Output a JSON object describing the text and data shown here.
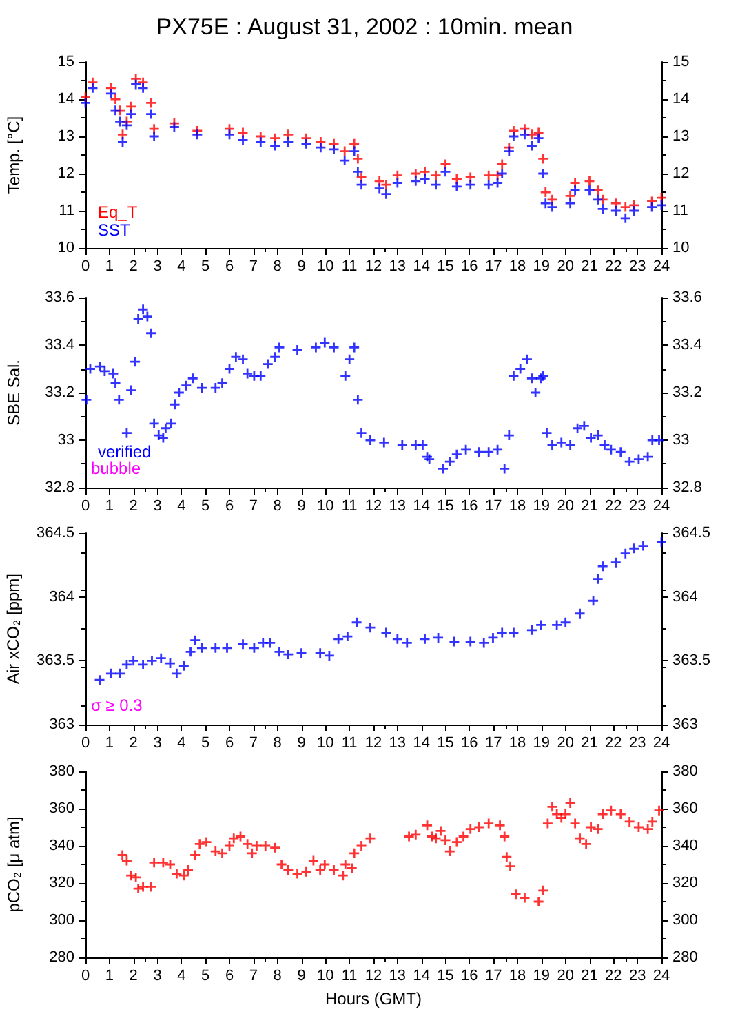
{
  "chart_data": [
    {
      "type": "scatter",
      "title": "PX75E : August 31, 2002 : 10min. mean",
      "ylabel": "Temp. [°C]",
      "xlim": [
        0,
        24
      ],
      "xticks": [
        0,
        1,
        2,
        3,
        4,
        5,
        6,
        7,
        8,
        9,
        10,
        11,
        12,
        13,
        14,
        15,
        16,
        17,
        18,
        19,
        20,
        21,
        22,
        23,
        24
      ],
      "ylim": [
        10,
        15
      ],
      "yticks": [
        10,
        11,
        12,
        13,
        14,
        15
      ],
      "y2lim": [
        10,
        15
      ],
      "y2ticks": [
        10,
        11,
        12,
        13,
        14,
        15
      ],
      "marker": "cross",
      "grid": false,
      "legend": "bottom left",
      "series": [
        {
          "name": "Eq_T",
          "color": "#ff0000",
          "x": [
            0,
            0.3,
            1.06,
            1.25,
            1.44,
            1.55,
            1.72,
            1.9,
            2.1,
            2.4,
            2.73,
            2.86,
            3.7,
            4.66,
            6.0,
            6.56,
            7.3,
            7.9,
            8.45,
            9.2,
            9.8,
            10.35,
            10.8,
            11.2,
            11.35,
            11.5,
            12.25,
            12.53,
            13.0,
            13.76,
            14.14,
            14.6,
            15.0,
            15.47,
            16.04,
            16.8,
            17.17,
            17.36,
            17.65,
            17.84,
            18.3,
            18.6,
            18.88,
            19.07,
            19.17,
            19.45,
            20.2,
            20.4,
            21.0,
            21.35,
            21.55,
            22.1,
            22.5,
            22.86,
            23.6,
            24
          ],
          "values": [
            14.05,
            14.45,
            14.3,
            14.0,
            13.7,
            13.05,
            13.4,
            13.8,
            14.55,
            14.45,
            13.9,
            13.2,
            13.35,
            13.15,
            13.2,
            13.1,
            13.0,
            12.95,
            13.05,
            12.95,
            12.85,
            12.8,
            12.6,
            12.8,
            12.4,
            11.9,
            11.8,
            11.7,
            11.95,
            12.0,
            12.05,
            11.95,
            12.25,
            11.85,
            11.9,
            11.95,
            11.95,
            12.25,
            12.7,
            13.15,
            13.2,
            13.05,
            13.1,
            12.4,
            11.5,
            11.3,
            11.4,
            11.75,
            11.8,
            11.55,
            11.3,
            11.2,
            11.1,
            11.15,
            11.25,
            11.35
          ]
        },
        {
          "name": "SST",
          "color": "#0000ff",
          "x": [
            0,
            0.3,
            1.06,
            1.25,
            1.44,
            1.55,
            1.72,
            1.9,
            2.1,
            2.4,
            2.73,
            2.86,
            3.7,
            4.66,
            6.0,
            6.56,
            7.3,
            7.9,
            8.45,
            9.2,
            9.8,
            10.35,
            10.8,
            11.2,
            11.35,
            11.5,
            12.25,
            12.53,
            13.0,
            13.76,
            14.14,
            14.6,
            15.0,
            15.47,
            16.04,
            16.8,
            17.17,
            17.36,
            17.65,
            17.84,
            18.3,
            18.6,
            18.88,
            19.07,
            19.17,
            19.45,
            20.2,
            20.4,
            21.0,
            21.35,
            21.55,
            22.1,
            22.5,
            22.86,
            23.6,
            24
          ],
          "values": [
            13.9,
            14.3,
            14.15,
            13.7,
            13.4,
            12.85,
            13.3,
            13.6,
            14.4,
            14.3,
            13.6,
            13.0,
            13.25,
            13.05,
            13.05,
            12.9,
            12.85,
            12.75,
            12.85,
            12.8,
            12.7,
            12.65,
            12.35,
            12.6,
            12.05,
            11.7,
            11.6,
            11.45,
            11.75,
            11.8,
            11.85,
            11.7,
            12.05,
            11.65,
            11.7,
            11.7,
            11.75,
            12.0,
            12.6,
            13.0,
            13.05,
            12.75,
            12.95,
            12.0,
            11.2,
            11.1,
            11.2,
            11.55,
            11.55,
            11.3,
            11.05,
            11.0,
            10.8,
            11.0,
            11.1,
            11.15
          ]
        }
      ]
    },
    {
      "type": "scatter",
      "ylabel": "SBE Sal.",
      "xlim": [
        0,
        24
      ],
      "xticks": [
        0,
        1,
        2,
        3,
        4,
        5,
        6,
        7,
        8,
        9,
        10,
        11,
        12,
        13,
        14,
        15,
        16,
        17,
        18,
        19,
        20,
        21,
        22,
        23,
        24
      ],
      "ylim": [
        32.8,
        33.6
      ],
      "yticks": [
        32.8,
        33,
        33.2,
        33.4,
        33.6
      ],
      "y2lim": [
        32.8,
        33.6
      ],
      "y2ticks": [
        32.8,
        33,
        33.2,
        33.4,
        33.6
      ],
      "marker": "cross",
      "grid": false,
      "legend": "bottom left",
      "annotations": [
        "bubble"
      ],
      "series": [
        {
          "name": "verified",
          "color": "#0000ff",
          "x": [
            0.04,
            0.2,
            0.6,
            0.8,
            1.16,
            1.25,
            1.4,
            1.72,
            1.9,
            2.07,
            2.2,
            2.4,
            2.58,
            2.73,
            2.86,
            3.05,
            3.24,
            3.34,
            3.56,
            3.72,
            3.9,
            4.2,
            4.47,
            4.85,
            5.42,
            5.7,
            6.0,
            6.27,
            6.56,
            6.75,
            7.03,
            7.3,
            7.6,
            7.9,
            8.08,
            8.83,
            9.6,
            9.97,
            10.35,
            10.83,
            11.0,
            11.2,
            11.35,
            11.5,
            11.87,
            12.44,
            13.2,
            13.76,
            14.05,
            14.24,
            14.33,
            14.9,
            15.18,
            15.47,
            15.85,
            16.4,
            16.8,
            17.17,
            17.46,
            17.65,
            17.84,
            18.12,
            18.4,
            18.6,
            18.75,
            18.97,
            19.07,
            19.22,
            19.45,
            19.83,
            20.2,
            20.5,
            20.78,
            21.06,
            21.35,
            21.63,
            21.9,
            22.3,
            22.67,
            23.05,
            23.43,
            23.62,
            23.9
          ],
          "values": [
            33.17,
            33.3,
            33.31,
            33.29,
            33.28,
            33.24,
            33.17,
            33.03,
            33.21,
            33.33,
            33.51,
            33.55,
            33.52,
            33.45,
            33.07,
            33.02,
            33.01,
            33.05,
            33.07,
            33.15,
            33.2,
            33.23,
            33.26,
            33.22,
            33.22,
            33.24,
            33.3,
            33.35,
            33.34,
            33.28,
            33.27,
            33.27,
            33.32,
            33.35,
            33.39,
            33.38,
            33.39,
            33.41,
            33.39,
            33.27,
            33.34,
            33.39,
            33.17,
            33.03,
            33.0,
            32.99,
            32.98,
            32.98,
            32.98,
            32.93,
            32.92,
            32.88,
            32.91,
            32.94,
            32.96,
            32.95,
            32.95,
            32.96,
            32.88,
            33.02,
            33.27,
            33.3,
            33.34,
            33.26,
            33.2,
            33.26,
            33.27,
            33.03,
            32.98,
            32.99,
            32.98,
            33.05,
            33.06,
            33.01,
            33.02,
            32.98,
            32.96,
            32.95,
            32.91,
            32.92,
            32.93,
            33.0,
            33.0
          ]
        }
      ]
    },
    {
      "type": "scatter",
      "ylabel": "Air xCO₂ [ppm]",
      "xlim": [
        0,
        24
      ],
      "xticks": [
        0,
        1,
        2,
        3,
        4,
        5,
        6,
        7,
        8,
        9,
        10,
        11,
        12,
        13,
        14,
        15,
        16,
        17,
        18,
        19,
        20,
        21,
        22,
        23,
        24
      ],
      "ylim": [
        363,
        364.5
      ],
      "yticks": [
        363,
        363.5,
        364,
        364.5
      ],
      "y2lim": [
        363,
        364.5
      ],
      "y2ticks": [
        363,
        363.5,
        364,
        364.5
      ],
      "marker": "cross",
      "grid": false,
      "annotations": [
        "σ ≥ 0.3"
      ],
      "series": [
        {
          "color": "#0000ff",
          "x": [
            0.59,
            1.06,
            1.44,
            1.72,
            2.0,
            2.4,
            2.77,
            3.15,
            3.53,
            3.8,
            4.1,
            4.38,
            4.57,
            4.85,
            5.42,
            5.9,
            6.56,
            7.03,
            7.4,
            7.7,
            8.08,
            8.45,
            9.0,
            9.78,
            10.16,
            10.54,
            10.92,
            11.3,
            11.87,
            12.53,
            13.0,
            13.4,
            14.14,
            14.7,
            15.37,
            16.04,
            16.6,
            16.98,
            17.36,
            17.84,
            18.6,
            18.98,
            19.64,
            20.0,
            20.6,
            21.16,
            21.35,
            21.55,
            22.1,
            22.5,
            22.86,
            23.24,
            24
          ],
          "values": [
            363.35,
            363.4,
            363.4,
            363.47,
            363.5,
            363.47,
            363.5,
            363.52,
            363.48,
            363.4,
            363.46,
            363.57,
            363.66,
            363.6,
            363.6,
            363.6,
            363.63,
            363.6,
            363.64,
            363.64,
            363.57,
            363.55,
            363.56,
            363.56,
            363.54,
            363.67,
            363.69,
            363.8,
            363.76,
            363.72,
            363.67,
            363.64,
            363.67,
            363.68,
            363.65,
            363.65,
            363.64,
            363.68,
            363.72,
            363.72,
            363.74,
            363.78,
            363.78,
            363.8,
            363.87,
            363.97,
            364.14,
            364.24,
            364.27,
            364.34,
            364.38,
            364.4,
            364.43
          ]
        }
      ]
    },
    {
      "type": "scatter",
      "ylabel": "pCO₂ [μ atm]",
      "xlabel": "Hours (GMT)",
      "xlim": [
        0,
        24
      ],
      "xticks": [
        0,
        1,
        2,
        3,
        4,
        5,
        6,
        7,
        8,
        9,
        10,
        11,
        12,
        13,
        14,
        15,
        16,
        17,
        18,
        19,
        20,
        21,
        22,
        23,
        24
      ],
      "ylim": [
        280,
        380
      ],
      "yticks": [
        280,
        300,
        320,
        340,
        360,
        380
      ],
      "y2lim": [
        280,
        380
      ],
      "y2ticks": [
        280,
        300,
        320,
        340,
        360,
        380
      ],
      "marker": "cross",
      "grid": false,
      "series": [
        {
          "color": "#ff0000",
          "x": [
            1.54,
            1.72,
            1.9,
            2.1,
            2.2,
            2.4,
            2.73,
            2.86,
            3.24,
            3.53,
            3.8,
            4.1,
            4.28,
            4.57,
            4.76,
            5.04,
            5.42,
            5.7,
            6.0,
            6.18,
            6.46,
            6.75,
            6.94,
            7.13,
            7.5,
            7.9,
            8.17,
            8.45,
            8.83,
            9.2,
            9.5,
            9.78,
            9.97,
            10.35,
            10.73,
            10.83,
            11.1,
            11.2,
            11.5,
            11.87,
            13.48,
            13.76,
            14.24,
            14.43,
            14.6,
            14.8,
            15.0,
            15.18,
            15.47,
            15.75,
            16.04,
            16.4,
            16.8,
            17.27,
            17.46,
            17.55,
            17.7,
            17.93,
            18.3,
            18.88,
            19.07,
            19.26,
            19.45,
            19.64,
            19.83,
            20.0,
            20.2,
            20.4,
            20.6,
            20.86,
            21.06,
            21.35,
            21.55,
            21.9,
            22.3,
            22.67,
            23.05,
            23.43,
            23.62,
            23.9
          ],
          "values": [
            335,
            332,
            324,
            323,
            317,
            318,
            318,
            331,
            331,
            330,
            325,
            324,
            327,
            335,
            341,
            342,
            337,
            336,
            340,
            344,
            345,
            341,
            336,
            340,
            340,
            339,
            330,
            327,
            325,
            326,
            332,
            327,
            330,
            327,
            324,
            330,
            328,
            336,
            340,
            344,
            345,
            346,
            351,
            345,
            344,
            348,
            343,
            337,
            342,
            345,
            349,
            350,
            352,
            351,
            345,
            334,
            329,
            314,
            312,
            310,
            316,
            352,
            361,
            357,
            355,
            357,
            363,
            352,
            344,
            341,
            350,
            349,
            357,
            359,
            357,
            353,
            350,
            349,
            353,
            359
          ]
        }
      ]
    }
  ]
}
